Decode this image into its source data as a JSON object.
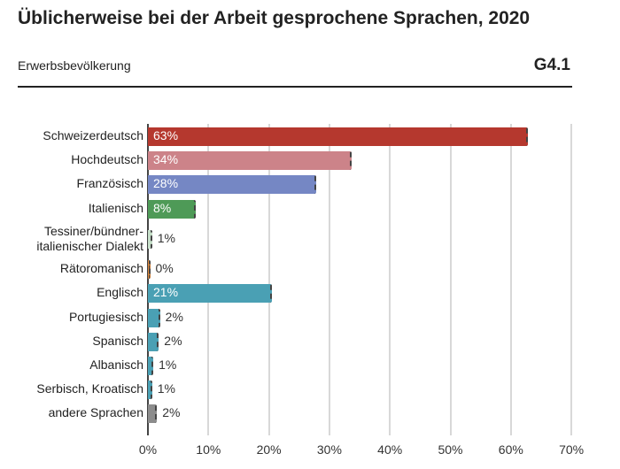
{
  "header": {
    "title": "Üblicherweise bei der Arbeit gesprochene Sprachen, 2020",
    "subtitle": "Erwerbsbevölkerung",
    "code": "G4.1"
  },
  "chart_data": {
    "type": "bar",
    "orientation": "horizontal",
    "title": "Üblicherweise bei der Arbeit gesprochene Sprachen, 2020",
    "subtitle": "Erwerbsbevölkerung",
    "xlabel": "",
    "ylabel": "",
    "xlim": [
      0,
      70
    ],
    "ticks": [
      "0%",
      "10%",
      "20%",
      "30%",
      "40%",
      "50%",
      "60%",
      "70%"
    ],
    "grid": true,
    "categories": [
      "Schweizerdeutsch",
      "Hochdeutsch",
      "Französisch",
      "Italienisch",
      "Tessiner/bündner-italienischer Dialekt",
      "Rätoromanisch",
      "Englisch",
      "Portugiesisch",
      "Spanisch",
      "Albanisch",
      "Serbisch, Kroatisch",
      "andere Sprachen"
    ],
    "values": [
      62.8,
      33.7,
      27.8,
      7.9,
      0.7,
      0.2,
      20.5,
      2.0,
      1.8,
      0.9,
      0.7,
      1.5
    ],
    "labels": [
      "63%",
      "34%",
      "28%",
      "8%",
      "1%",
      "0%",
      "21%",
      "2%",
      "2%",
      "1%",
      "1%",
      "2%"
    ],
    "colors": [
      "#b5382e",
      "#cc8389",
      "#7587c4",
      "#4e9a57",
      "#c5dec8",
      "#e0883a",
      "#4aa0b4",
      "#4aa0b4",
      "#4aa0b4",
      "#4aa0b4",
      "#4aa0b4",
      "#8c8c8c"
    ]
  }
}
